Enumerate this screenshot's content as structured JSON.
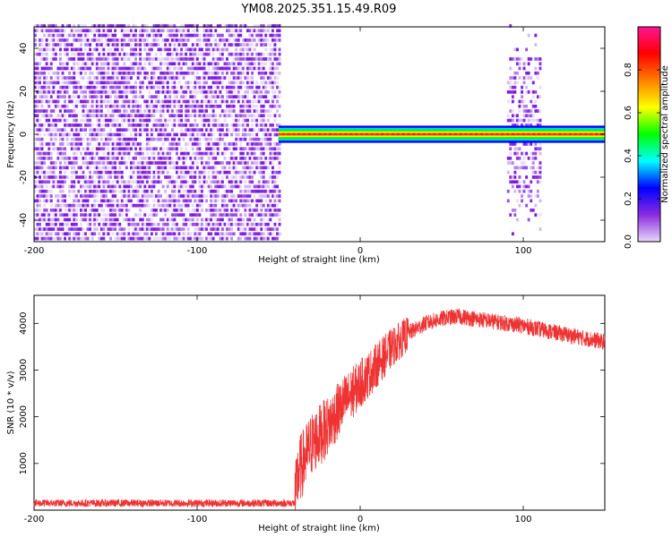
{
  "title": "YM08.2025.351.15.49.R09",
  "chart_data": [
    {
      "type": "heatmap",
      "xlabel": "Height of straight line (km)",
      "ylabel": "Frequency (Hz)",
      "xlim": [
        -200,
        150
      ],
      "ylim": [
        -50,
        50
      ],
      "xticks": [
        -200,
        -100,
        0,
        100
      ],
      "yticks": [
        -40,
        -20,
        0,
        20,
        40
      ],
      "colorbar": {
        "label": "Normalized spectral amplitude",
        "range": [
          0,
          1
        ],
        "ticks": [
          "0.0",
          "0.2",
          "0.4",
          "0.6",
          "0.8"
        ],
        "colors": [
          "#e8d8f8",
          "#8a2be2",
          "#0000ff",
          "#00ffff",
          "#00ff00",
          "#ffff00",
          "#ff8000",
          "#ff0000",
          "#ff1493"
        ]
      },
      "regions": [
        {
          "kind": "noise",
          "x": [
            -200,
            -50
          ],
          "freq": [
            -50,
            50
          ],
          "amplitude": [
            0.05,
            0.2
          ]
        },
        {
          "kind": "carrier",
          "x": [
            -50,
            150
          ],
          "freq_center": 0,
          "freq_halfwidth": 4,
          "amplitude": 1.0
        },
        {
          "kind": "burst",
          "x": [
            90,
            110
          ],
          "freq": [
            -50,
            50
          ],
          "amplitude": [
            0.05,
            0.25
          ]
        }
      ]
    },
    {
      "type": "line",
      "xlabel": "Height of straight line (km)",
      "ylabel": "SNR (10 * v/v)",
      "xlim": [
        -200,
        150
      ],
      "ylim": [
        0,
        4600
      ],
      "xticks": [
        -200,
        -100,
        0,
        100
      ],
      "yticks": [
        1000,
        2000,
        3000,
        4000
      ],
      "color": "#ee3333",
      "profile": {
        "x": [
          -200,
          -40,
          -38,
          -30,
          -20,
          -10,
          0,
          10,
          20,
          30,
          40,
          50,
          60,
          80,
          100,
          120,
          150
        ],
        "y": [
          150,
          150,
          800,
          1400,
          1800,
          2300,
          2700,
          3100,
          3500,
          3800,
          4000,
          4100,
          4150,
          4050,
          3950,
          3800,
          3600
        ]
      }
    }
  ]
}
